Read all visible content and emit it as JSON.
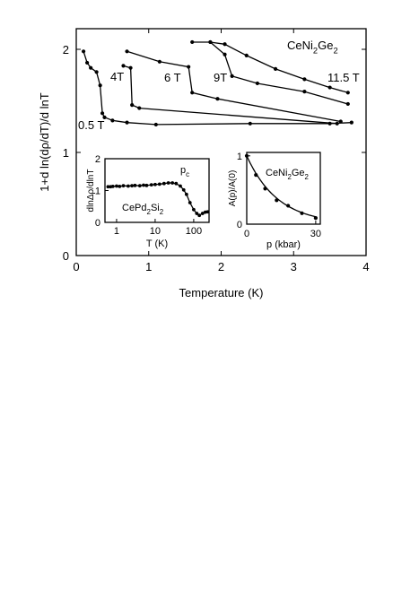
{
  "chart_data": [
    {
      "type": "line",
      "title": "",
      "xlabel": "Temperature  (K)",
      "ylabel": "1+d ln(dρ/dT)/d lnT",
      "xlim": [
        0,
        4
      ],
      "ylim": [
        0,
        2.2
      ],
      "xticks": [
        0,
        1,
        2,
        3,
        4
      ],
      "yticks": [
        0,
        1,
        2
      ],
      "compound_label": {
        "main": "CeNi",
        "sub1": "2",
        "mid": "Ge",
        "sub2": "2"
      },
      "series": [
        {
          "name": "0.5 T",
          "points": [
            [
              0.1,
              1.98
            ],
            [
              0.15,
              1.87
            ],
            [
              0.2,
              1.82
            ],
            [
              0.28,
              1.78
            ],
            [
              0.33,
              1.65
            ],
            [
              0.36,
              1.38
            ],
            [
              0.39,
              1.34
            ],
            [
              0.5,
              1.31
            ],
            [
              0.7,
              1.29
            ],
            [
              1.1,
              1.27
            ],
            [
              2.4,
              1.28
            ],
            [
              3.5,
              1.28
            ],
            [
              3.8,
              1.29
            ]
          ]
        },
        {
          "name": "4T",
          "points": [
            [
              0.65,
              1.84
            ],
            [
              0.75,
              1.82
            ],
            [
              0.77,
              1.46
            ],
            [
              0.87,
              1.43
            ],
            [
              3.6,
              1.28
            ]
          ]
        },
        {
          "name": "6 T",
          "points": [
            [
              0.7,
              1.98
            ],
            [
              1.15,
              1.88
            ],
            [
              1.55,
              1.83
            ],
            [
              1.6,
              1.58
            ],
            [
              1.95,
              1.52
            ],
            [
              3.65,
              1.3
            ]
          ]
        },
        {
          "name": "9T",
          "points": [
            [
              1.6,
              2.07
            ],
            [
              1.85,
              2.07
            ],
            [
              2.05,
              1.95
            ],
            [
              2.15,
              1.74
            ],
            [
              2.5,
              1.67
            ],
            [
              3.15,
              1.59
            ],
            [
              3.75,
              1.47
            ]
          ]
        },
        {
          "name": "11.5 T",
          "points": [
            [
              1.85,
              2.07
            ],
            [
              2.05,
              2.05
            ],
            [
              2.35,
              1.94
            ],
            [
              2.75,
              1.81
            ],
            [
              3.15,
              1.71
            ],
            [
              3.5,
              1.63
            ],
            [
              3.75,
              1.58
            ]
          ]
        }
      ],
      "series_label_text": [
        "0.5 T",
        "4T",
        "6 T",
        "9T",
        "11.5 T"
      ]
    },
    {
      "type": "line",
      "title": "",
      "xlabel": "T  (K)",
      "ylabel": "dlnΔρ/dlnT",
      "x_scale": "log",
      "xlim": [
        0.5,
        250
      ],
      "ylim": [
        0,
        2
      ],
      "xticks": [
        1,
        10,
        100
      ],
      "yticks": [
        0,
        1,
        2
      ],
      "corner_label": {
        "main": "p",
        "sub": "c"
      },
      "compound_label": {
        "main": "CePd",
        "sub1": "2",
        "mid": "Si",
        "sub2": "2"
      },
      "series": [
        {
          "name": "",
          "points": [
            [
              0.6,
              1.12
            ],
            [
              0.7,
              1.12
            ],
            [
              0.8,
              1.13
            ],
            [
              1.0,
              1.14
            ],
            [
              1.2,
              1.13
            ],
            [
              1.5,
              1.15
            ],
            [
              2.0,
              1.14
            ],
            [
              2.5,
              1.15
            ],
            [
              3.0,
              1.16
            ],
            [
              4.0,
              1.15
            ],
            [
              5.0,
              1.17
            ],
            [
              6.0,
              1.16
            ],
            [
              8.0,
              1.18
            ],
            [
              10,
              1.19
            ],
            [
              13,
              1.2
            ],
            [
              17,
              1.22
            ],
            [
              22,
              1.24
            ],
            [
              28,
              1.24
            ],
            [
              35,
              1.22
            ],
            [
              45,
              1.14
            ],
            [
              55,
              1.02
            ],
            [
              65,
              0.88
            ],
            [
              80,
              0.62
            ],
            [
              100,
              0.4
            ],
            [
              120,
              0.28
            ],
            [
              140,
              0.22
            ],
            [
              170,
              0.28
            ],
            [
              200,
              0.32
            ],
            [
              230,
              0.33
            ]
          ]
        }
      ]
    },
    {
      "type": "scatter",
      "title": "",
      "xlabel": "p  (kbar)",
      "ylabel": "A(p)/A(0)",
      "xlim": [
        0,
        32
      ],
      "ylim": [
        0,
        1.05
      ],
      "xticks": [
        0,
        30
      ],
      "yticks": [
        0,
        1
      ],
      "compound_label": {
        "main": "CeNi",
        "sub1": "2",
        "mid": "Ge",
        "sub2": "2"
      },
      "series": [
        {
          "name": "",
          "points": [
            [
              0,
              1.0
            ],
            [
              4,
              0.72
            ],
            [
              8,
              0.52
            ],
            [
              13,
              0.35
            ],
            [
              18,
              0.27
            ],
            [
              24,
              0.16
            ],
            [
              30,
              0.09
            ]
          ]
        }
      ],
      "fit": {
        "form": "exponential",
        "a": 1.0,
        "decay": 13.5
      }
    }
  ]
}
